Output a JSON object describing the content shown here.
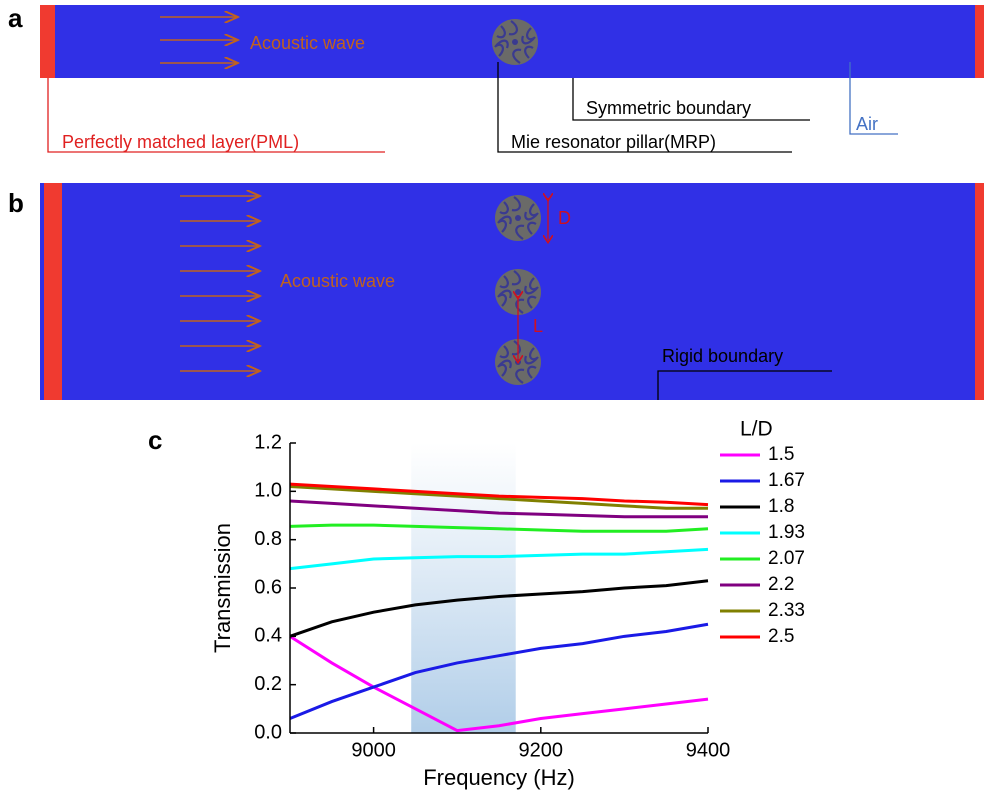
{
  "panels": {
    "a": {
      "label": "a",
      "wave_label": "Acoustic wave",
      "pml": "Perfectly matched layer(PML)",
      "mrp": "Mie resonator pillar(MRP)",
      "symmetric": "Symmetric boundary",
      "air": "Air"
    },
    "b": {
      "label": "b",
      "wave_label": "Acoustic wave",
      "d": "D",
      "l": "L",
      "rigid": "Rigid boundary"
    }
  },
  "chart_data": {
    "type": "line",
    "panel_label": "c",
    "xlabel": "Frequency (Hz)",
    "ylabel": "Transmission",
    "legend_title": "L/D",
    "x": [
      8900,
      8950,
      9000,
      9050,
      9100,
      9150,
      9200,
      9250,
      9300,
      9350,
      9400
    ],
    "highlight": [
      9045,
      9170
    ],
    "series": [
      {
        "name": "1.5",
        "color": "#ff00ff",
        "values": [
          0.4,
          0.29,
          0.19,
          0.1,
          0.01,
          0.03,
          0.06,
          0.08,
          0.1,
          0.12,
          0.14
        ]
      },
      {
        "name": "1.67",
        "color": "#1a1ae6",
        "values": [
          0.06,
          0.13,
          0.19,
          0.25,
          0.29,
          0.32,
          0.35,
          0.37,
          0.4,
          0.42,
          0.45
        ]
      },
      {
        "name": "1.8",
        "color": "#000000",
        "values": [
          0.4,
          0.46,
          0.5,
          0.53,
          0.55,
          0.565,
          0.575,
          0.585,
          0.6,
          0.61,
          0.63
        ]
      },
      {
        "name": "1.93",
        "color": "#00ffff",
        "values": [
          0.68,
          0.7,
          0.72,
          0.725,
          0.73,
          0.73,
          0.735,
          0.74,
          0.74,
          0.75,
          0.76
        ]
      },
      {
        "name": "2.07",
        "color": "#22ee22",
        "values": [
          0.855,
          0.86,
          0.86,
          0.855,
          0.85,
          0.845,
          0.84,
          0.835,
          0.835,
          0.835,
          0.845
        ]
      },
      {
        "name": "2.2",
        "color": "#800080",
        "values": [
          0.96,
          0.95,
          0.94,
          0.93,
          0.92,
          0.91,
          0.905,
          0.9,
          0.895,
          0.895,
          0.895
        ]
      },
      {
        "name": "2.33",
        "color": "#808000",
        "values": [
          1.02,
          1.01,
          1.0,
          0.99,
          0.98,
          0.97,
          0.96,
          0.95,
          0.94,
          0.93,
          0.93
        ]
      },
      {
        "name": "2.5",
        "color": "#ff0000",
        "values": [
          1.03,
          1.02,
          1.01,
          1.0,
          0.99,
          0.98,
          0.975,
          0.97,
          0.96,
          0.955,
          0.945
        ]
      }
    ],
    "xlim": [
      8900,
      9400
    ],
    "xticks": [
      9000,
      9200,
      9400
    ],
    "ylim": [
      0,
      1.2
    ],
    "yticks": [
      {
        "value": 0,
        "label": "0.0"
      },
      0.2,
      0.4,
      0.6,
      0.8,
      {
        "value": 1,
        "label": "1.0"
      },
      1.2
    ]
  }
}
